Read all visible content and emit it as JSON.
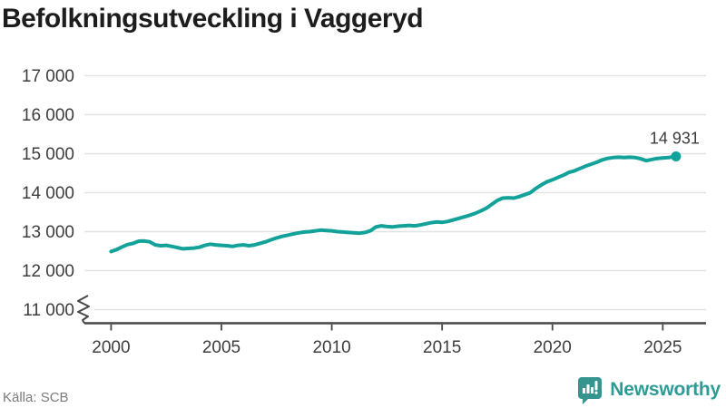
{
  "header": {
    "title": "Befolkningsutveckling i Vaggeryd"
  },
  "footer": {
    "source": "Källa: SCB",
    "brand": "Newsworthy",
    "logo_icon": "bar-chart-speech-bubble-icon"
  },
  "colors": {
    "line": "#12a299",
    "grid": "#e3e3e3",
    "axis": "#474747",
    "tick_label": "#3d3d3d",
    "title": "#1d1d1d",
    "source": "#7b7b7b",
    "logo": "#2e9c96"
  },
  "chart_data": {
    "type": "line",
    "title": "Befolkningsutveckling i Vaggeryd",
    "xlabel": "",
    "ylabel": "",
    "grid": "horizontal",
    "axis_break": true,
    "legend": "none",
    "xlim": [
      1998.79,
      2026.96
    ],
    "ylim": [
      11000,
      17000
    ],
    "x_ticks": [
      2000,
      2005,
      2010,
      2015,
      2020,
      2025
    ],
    "x_tick_labels": [
      "2000",
      "2005",
      "2010",
      "2015",
      "2020",
      "2025"
    ],
    "y_ticks": [
      17000,
      16000,
      15000,
      14000,
      13000,
      12000,
      11000
    ],
    "y_tick_labels": [
      "17 000",
      "16 000",
      "15 000",
      "14 000",
      "13 000",
      "12 000",
      "11 000"
    ],
    "series": [
      {
        "name": "Befolkning",
        "x": [
          2000.0,
          2000.25,
          2000.5,
          2000.75,
          2001.0,
          2001.25,
          2001.5,
          2001.75,
          2002.0,
          2002.25,
          2002.5,
          2002.75,
          2003.0,
          2003.25,
          2003.5,
          2003.75,
          2004.0,
          2004.25,
          2004.5,
          2004.75,
          2005.0,
          2005.25,
          2005.5,
          2005.75,
          2006.0,
          2006.25,
          2006.5,
          2006.75,
          2007.0,
          2007.25,
          2007.5,
          2007.75,
          2008.0,
          2008.25,
          2008.5,
          2008.75,
          2009.0,
          2009.25,
          2009.5,
          2009.75,
          2010.0,
          2010.25,
          2010.5,
          2010.75,
          2011.0,
          2011.25,
          2011.5,
          2011.75,
          2012.0,
          2012.25,
          2012.5,
          2012.75,
          2013.0,
          2013.25,
          2013.5,
          2013.75,
          2014.0,
          2014.25,
          2014.5,
          2014.75,
          2015.0,
          2015.25,
          2015.5,
          2015.75,
          2016.0,
          2016.25,
          2016.5,
          2016.75,
          2017.0,
          2017.25,
          2017.5,
          2017.75,
          2018.0,
          2018.25,
          2018.5,
          2018.75,
          2019.0,
          2019.25,
          2019.5,
          2019.75,
          2020.0,
          2020.25,
          2020.5,
          2020.75,
          2021.0,
          2021.25,
          2021.5,
          2021.75,
          2022.0,
          2022.25,
          2022.5,
          2022.75,
          2023.0,
          2023.25,
          2023.5,
          2023.75,
          2024.0,
          2024.25,
          2024.5,
          2024.75,
          2025.0,
          2025.25,
          2025.6
        ],
        "y": [
          12490,
          12540,
          12610,
          12670,
          12700,
          12755,
          12760,
          12740,
          12660,
          12640,
          12650,
          12620,
          12590,
          12560,
          12570,
          12580,
          12600,
          12650,
          12680,
          12660,
          12650,
          12640,
          12620,
          12650,
          12660,
          12640,
          12660,
          12700,
          12740,
          12790,
          12840,
          12880,
          12910,
          12940,
          12970,
          12990,
          13000,
          13020,
          13040,
          13030,
          13020,
          13000,
          12990,
          12980,
          12970,
          12960,
          12980,
          13020,
          13120,
          13150,
          13130,
          13120,
          13140,
          13150,
          13160,
          13150,
          13170,
          13200,
          13230,
          13250,
          13240,
          13260,
          13300,
          13340,
          13380,
          13420,
          13470,
          13530,
          13600,
          13700,
          13800,
          13860,
          13870,
          13860,
          13900,
          13950,
          14000,
          14110,
          14200,
          14280,
          14330,
          14390,
          14450,
          14520,
          14560,
          14620,
          14680,
          14730,
          14780,
          14840,
          14880,
          14900,
          14910,
          14900,
          14910,
          14900,
          14870,
          14820,
          14850,
          14880,
          14890,
          14900,
          14931
        ]
      }
    ],
    "end_point": {
      "x": 2025.6,
      "y": 14931,
      "label": "14 931"
    }
  }
}
